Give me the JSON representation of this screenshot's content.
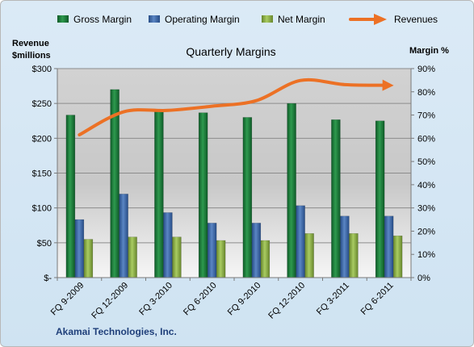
{
  "chart_data": {
    "type": "bar",
    "title": "Quarterly Margins",
    "footer": "Akamai Technologies, Inc.",
    "left_axis_title": [
      "Revenue",
      "$millions"
    ],
    "right_axis_title": "Margin %",
    "categories": [
      "FQ 9-2009",
      "FQ 12-2009",
      "FQ 3-2010",
      "FQ 6-2010",
      "FQ 9-2010",
      "FQ 12-2010",
      "FQ 3-2011",
      "FQ 6-2011"
    ],
    "left_ticks": [
      "$-",
      "$50",
      "$100",
      "$150",
      "$200",
      "$250",
      "$300"
    ],
    "right_ticks": [
      "0%",
      "10%",
      "20%",
      "30%",
      "40%",
      "50%",
      "60%",
      "70%",
      "80%",
      "90%"
    ],
    "ylim_left": [
      0,
      300
    ],
    "ylim_right": [
      0,
      90
    ],
    "series": [
      {
        "name": "Gross Margin",
        "kind": "bar",
        "axis": "right",
        "color": "#1f7a3c",
        "values": [
          70,
          81,
          72,
          71,
          69,
          75,
          68,
          67.5
        ]
      },
      {
        "name": "Operating Margin",
        "kind": "bar",
        "axis": "right",
        "color": "#3e66a6",
        "values": [
          25,
          36,
          28,
          23.5,
          23.5,
          31,
          26.5,
          26.5
        ]
      },
      {
        "name": "Net Margin",
        "kind": "bar",
        "axis": "right",
        "color": "#8fb34a",
        "values": [
          16.5,
          17.5,
          17.5,
          16,
          16,
          19,
          19,
          18
        ]
      },
      {
        "name": "Revenues",
        "kind": "line",
        "axis": "left",
        "color": "#ec7125",
        "values": [
          205,
          238,
          240,
          246,
          254,
          283,
          277,
          276
        ]
      }
    ],
    "grid": true,
    "legend_position": "top"
  }
}
